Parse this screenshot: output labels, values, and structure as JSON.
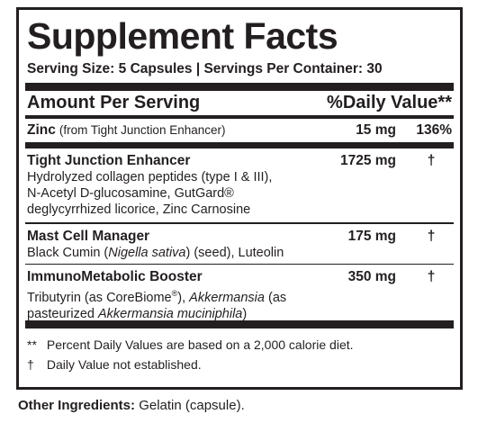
{
  "title": "Supplement Facts",
  "serving_size": "Serving Size: 5 Capsules",
  "serving_separator": "|",
  "servings_per_container": "Servings Per Container: 30",
  "header": {
    "amount_label": "Amount Per Serving",
    "dv_label": "%Daily Value**"
  },
  "zinc": {
    "name": "Zinc",
    "source": "(from Tight Junction Enhancer)",
    "amount": "15 mg",
    "dv": "136%"
  },
  "tje": {
    "name": "Tight Junction Enhancer",
    "amount": "1725 mg",
    "dv": "†",
    "line1": "Hydrolyzed collagen peptides (type I & III),",
    "line2": "N-Acetyl D-glucosamine, GutGard®",
    "line3": "deglycyrrhized licorice, Zinc Carnosine"
  },
  "mcm": {
    "name": "Mast Cell Manager",
    "amount": "175 mg",
    "dv": "†",
    "pre": "Black Cumin (",
    "italic": "Nigella sativa",
    "post": ") (seed), Luteolin"
  },
  "imb": {
    "name": "ImmunoMetabolic Booster",
    "amount": "350 mg",
    "dv": "†",
    "l1_pre": "Tributyrin (as CoreBiome",
    "l1_reg": "®",
    "l1_mid": "), ",
    "l1_italic": "Akkermansia",
    "l1_post": " (as",
    "l2_pre": "pasteurized ",
    "l2_italic": "Akkermansia muciniphila",
    "l2_post": ")"
  },
  "footnotes": {
    "f1_mark": "**",
    "f1_text": "Percent Daily Values are based on a 2,000 calorie diet.",
    "f2_mark": "†",
    "f2_text": "Daily Value not established."
  },
  "other": {
    "label": "Other Ingredients:",
    "value": "Gelatin (capsule)."
  }
}
